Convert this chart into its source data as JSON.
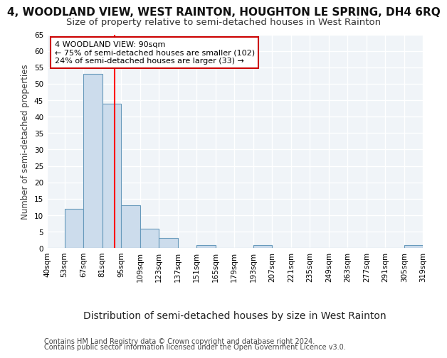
{
  "title": "4, WOODLAND VIEW, WEST RAINTON, HOUGHTON LE SPRING, DH4 6RQ",
  "subtitle": "Size of property relative to semi-detached houses in West Rainton",
  "xlabel": "Distribution of semi-detached houses by size in West Rainton",
  "ylabel": "Number of semi-detached properties",
  "footnote1": "Contains HM Land Registry data © Crown copyright and database right 2024.",
  "footnote2": "Contains public sector information licensed under the Open Government Licence v3.0.",
  "annotation_line1": "4 WOODLAND VIEW: 90sqm",
  "annotation_line2": "← 75% of semi-detached houses are smaller (102)",
  "annotation_line3": "24% of semi-detached houses are larger (33) →",
  "bar_edges": [
    40,
    53,
    67,
    81,
    95,
    109,
    123,
    137,
    151,
    165,
    179,
    193,
    207,
    221,
    235,
    249,
    263,
    277,
    291,
    305,
    319
  ],
  "bar_heights": [
    0,
    12,
    53,
    44,
    13,
    6,
    3,
    0,
    1,
    0,
    0,
    1,
    0,
    0,
    0,
    0,
    0,
    0,
    0,
    1
  ],
  "bar_color": "#ccdcec",
  "bar_edge_color": "#6699bb",
  "red_line_x": 90,
  "ylim": [
    0,
    65
  ],
  "yticks": [
    0,
    5,
    10,
    15,
    20,
    25,
    30,
    35,
    40,
    45,
    50,
    55,
    60,
    65
  ],
  "bg_color": "#ffffff",
  "plot_bg_color": "#f0f4f8",
  "grid_color": "#ffffff",
  "annotation_box_color": "#ffffff",
  "annotation_box_edge": "#cc0000",
  "title_fontsize": 11,
  "subtitle_fontsize": 9.5,
  "xlabel_fontsize": 10,
  "ylabel_fontsize": 8.5,
  "tick_fontsize": 7.5,
  "annotation_fontsize": 8,
  "footnote_fontsize": 7
}
